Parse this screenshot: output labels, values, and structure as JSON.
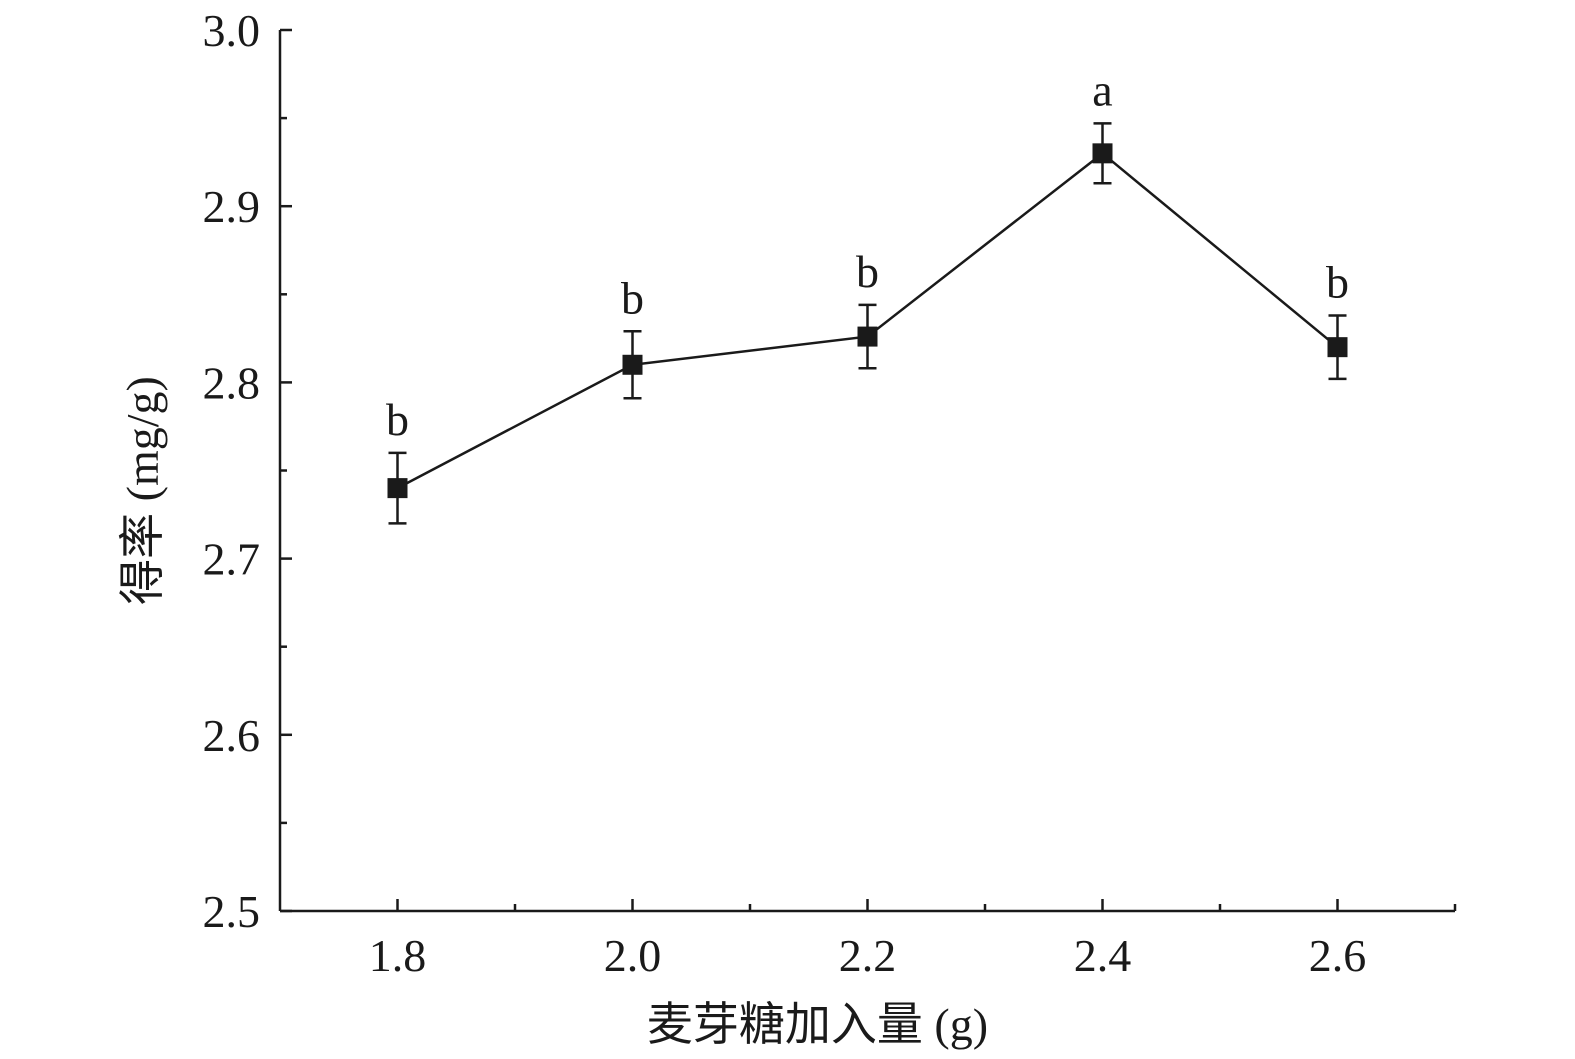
{
  "chart_data": {
    "type": "line",
    "xlabel": "麦芽糖加入量 (g)",
    "ylabel": "得率 (mg/g)",
    "xlim": [
      1.7,
      2.7
    ],
    "ylim": [
      2.5,
      3.0
    ],
    "x_ticks": [
      "1.8",
      "2.0",
      "2.2",
      "2.4",
      "2.6"
    ],
    "x_minor_ticks": [
      1.9,
      2.1,
      2.3,
      2.5,
      2.7
    ],
    "y_ticks": [
      "2.5",
      "2.6",
      "2.7",
      "2.8",
      "2.9",
      "3.0"
    ],
    "y_minor_ticks": [
      2.55,
      2.65,
      2.75,
      2.85,
      2.95
    ],
    "grid": false,
    "series": [
      {
        "x": [
          1.8,
          2.0,
          2.2,
          2.4,
          2.6
        ],
        "y": [
          2.74,
          2.81,
          2.826,
          2.93,
          2.82
        ],
        "error": [
          0.02,
          0.019,
          0.018,
          0.017,
          0.018
        ],
        "labels": [
          "b",
          "b",
          "b",
          "a",
          "b"
        ]
      }
    ]
  }
}
